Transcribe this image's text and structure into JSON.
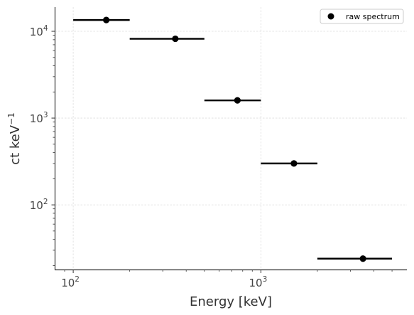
{
  "chart_data": {
    "type": "scatter",
    "xlabel": "Energy [keV]",
    "ylabel_main": "ct keV",
    "ylabel_exponent": "−1",
    "xscale": "log",
    "yscale": "log",
    "xlim": [
      80,
      6000
    ],
    "ylim": [
      18,
      19000
    ],
    "grid": true,
    "legend_position": "top-right",
    "x_ticks": [
      {
        "base": "10",
        "exp": "2",
        "value": 100
      },
      {
        "base": "10",
        "exp": "3",
        "value": 1000
      }
    ],
    "y_ticks": [
      {
        "base": "10",
        "exp": "2",
        "value": 100
      },
      {
        "base": "10",
        "exp": "3",
        "value": 1000
      },
      {
        "base": "10",
        "exp": "4",
        "value": 10000
      }
    ],
    "series": [
      {
        "name": "raw spectrum",
        "color": "#000000",
        "points": [
          {
            "x": 150,
            "xerr_low": 100,
            "xerr_high": 200,
            "y": 13500
          },
          {
            "x": 350,
            "xerr_low": 200,
            "xerr_high": 500,
            "y": 8200
          },
          {
            "x": 750,
            "xerr_low": 500,
            "xerr_high": 1000,
            "y": 1600
          },
          {
            "x": 1500,
            "xerr_low": 1000,
            "xerr_high": 2000,
            "y": 300
          },
          {
            "x": 3500,
            "xerr_low": 2000,
            "xerr_high": 5000,
            "y": 24
          }
        ]
      }
    ]
  }
}
